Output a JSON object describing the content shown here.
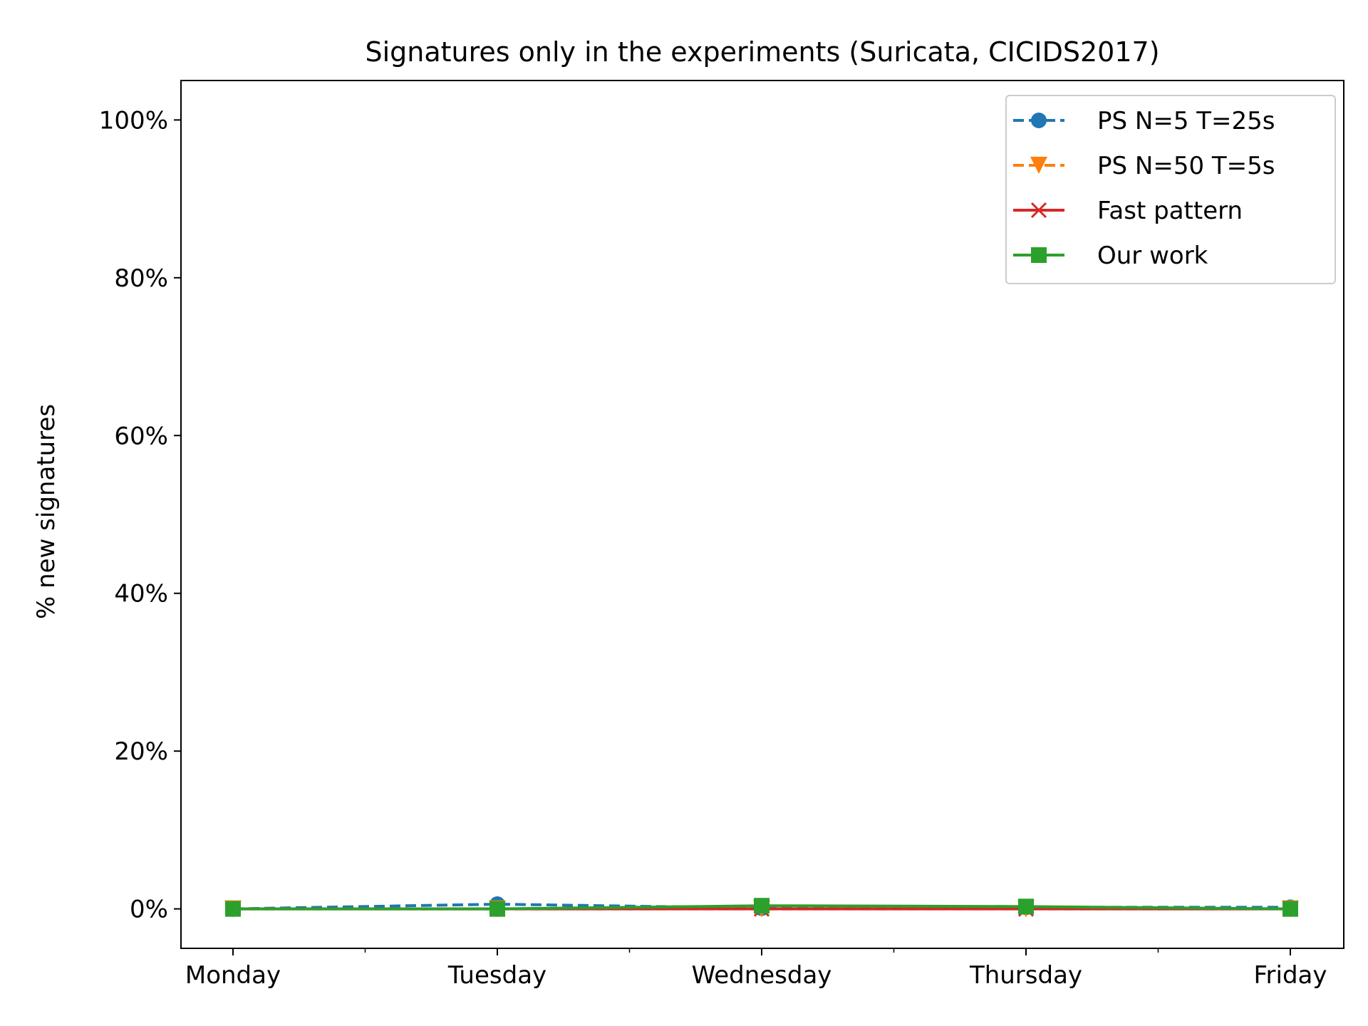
{
  "chart_data": {
    "type": "line",
    "title": "Signatures only in the experiments (Suricata, CICIDS2017)",
    "xlabel": "",
    "ylabel": "% new signatures",
    "categories": [
      "Monday",
      "Tuesday",
      "Wednesday",
      "Thursday",
      "Friday"
    ],
    "ylim": [
      -5,
      105
    ],
    "yticks": [
      0,
      20,
      40,
      60,
      80,
      100
    ],
    "ytick_labels": [
      "0%",
      "20%",
      "40%",
      "60%",
      "80%",
      "100%"
    ],
    "grid": false,
    "legend_position": "top-right",
    "series": [
      {
        "name": "PS N=5 T=25s",
        "values": [
          0.0,
          0.6,
          0.1,
          0.2,
          0.2
        ],
        "color": "#1f77b4",
        "dash": "dashed",
        "marker": "circle"
      },
      {
        "name": "PS N=50 T=5s",
        "values": [
          0.0,
          0.0,
          0.0,
          0.0,
          0.0
        ],
        "color": "#ff7f0e",
        "dash": "dashed",
        "marker": "triangle-down"
      },
      {
        "name": "Fast pattern",
        "values": [
          0.0,
          0.0,
          0.0,
          0.0,
          0.0
        ],
        "color": "#d62728",
        "dash": "solid",
        "marker": "x"
      },
      {
        "name": "Our work",
        "values": [
          0.0,
          0.0,
          0.4,
          0.3,
          0.0
        ],
        "color": "#2ca02c",
        "dash": "solid",
        "marker": "square"
      }
    ]
  }
}
